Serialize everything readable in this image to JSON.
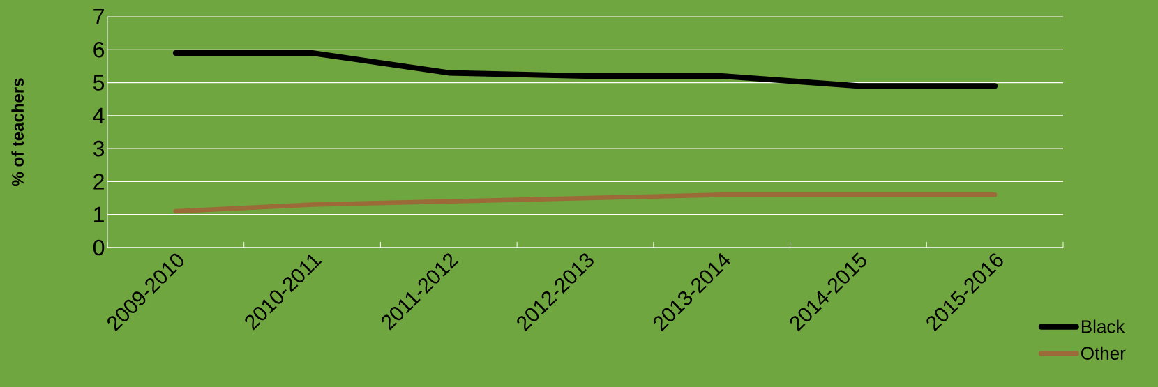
{
  "chart_data": {
    "type": "line",
    "ylabel": "% of teachers",
    "categories": [
      "2009-2010",
      "2010-2011",
      "2011-2012",
      "2012-2013",
      "2013-2014",
      "2014-2015",
      "2015-2016"
    ],
    "series": [
      {
        "name": "Black",
        "color": "#000000",
        "values": [
          5.9,
          5.9,
          5.3,
          5.2,
          5.2,
          4.9,
          4.9
        ]
      },
      {
        "name": "Other",
        "color": "#9b6a38",
        "values": [
          1.1,
          1.3,
          1.4,
          1.5,
          1.6,
          1.6,
          1.6
        ]
      }
    ],
    "ylim": [
      0,
      7
    ],
    "yticks": [
      0,
      1,
      2,
      3,
      4,
      5,
      6,
      7
    ],
    "grid": "y",
    "legend": "bottom right",
    "marker": "none",
    "line_style": "solid"
  }
}
